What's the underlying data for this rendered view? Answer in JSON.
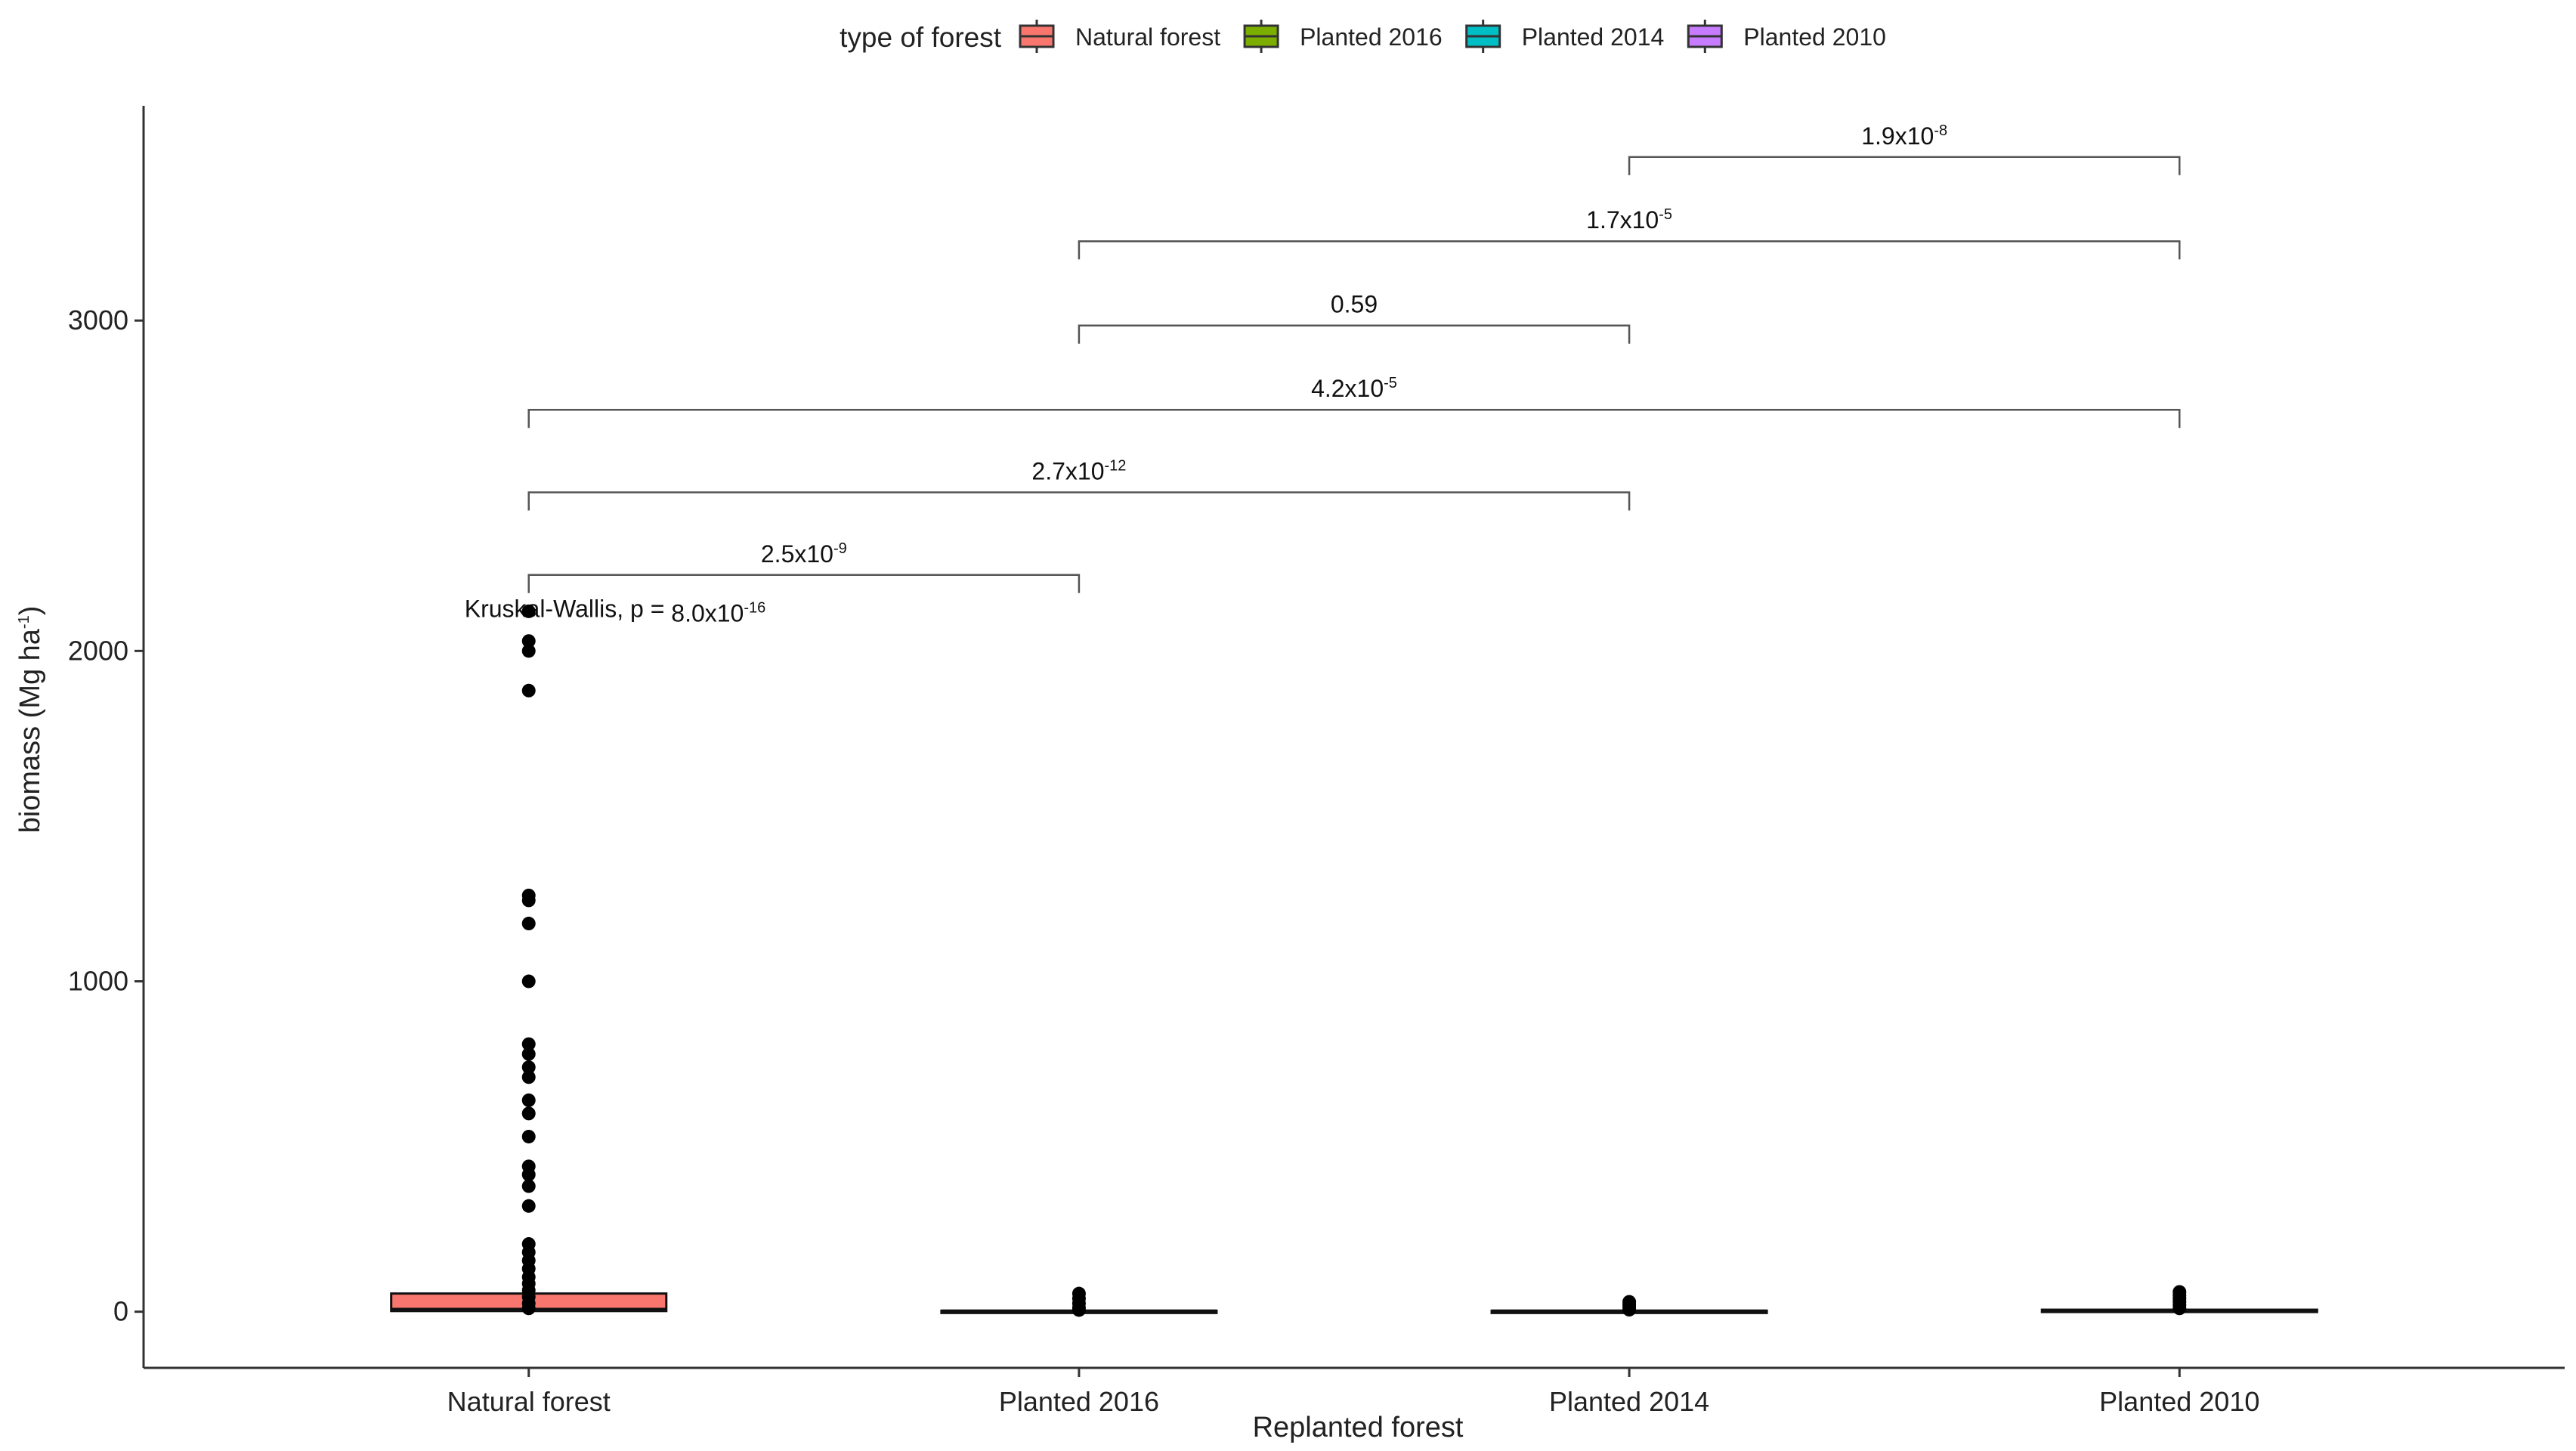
{
  "chart_data": {
    "type": "boxplot",
    "title": "",
    "xlabel": "Replanted forest",
    "ylabel_base": "biomass (Mg ha",
    "ylabel_sup": "-1",
    "ylabel_tail": ")",
    "ylim": [
      -170,
      3650
    ],
    "yticks": [
      0,
      1000,
      2000,
      3000
    ],
    "categories": [
      "Natural forest",
      "Planted 2016",
      "Planted 2014",
      "Planted 2010"
    ],
    "legend": {
      "title": "type of forest",
      "position": "top",
      "entries": [
        {
          "label": "Natural forest",
          "color": "#F8766D"
        },
        {
          "label": "Planted 2016",
          "color": "#7CAE00"
        },
        {
          "label": "Planted 2014",
          "color": "#00BFC4"
        },
        {
          "label": "Planted 2010",
          "color": "#C77CFF"
        }
      ]
    },
    "boxes": [
      {
        "category": "Natural forest",
        "q1": 2,
        "median": 6,
        "q3": 55,
        "color": "#F8766D",
        "outliers": [
          2120,
          2030,
          2000,
          1880,
          1260,
          1245,
          1175,
          1000,
          810,
          780,
          740,
          710,
          640,
          600,
          530,
          440,
          415,
          380,
          320,
          205,
          180,
          155,
          130,
          105,
          85,
          65,
          45,
          25,
          10
        ]
      },
      {
        "category": "Planted 2016",
        "q1": 0,
        "median": 1,
        "q3": 3,
        "color": "#7CAE00",
        "outliers": [
          55,
          40,
          25,
          12,
          5
        ]
      },
      {
        "category": "Planted 2014",
        "q1": 0,
        "median": 1,
        "q3": 3,
        "color": "#00BFC4",
        "outliers": [
          30,
          22,
          14,
          6
        ]
      },
      {
        "category": "Planted 2010",
        "q1": 1,
        "median": 3,
        "q3": 6,
        "color": "#C77CFF",
        "outliers": [
          60,
          50,
          40,
          30,
          20,
          10
        ]
      }
    ],
    "kruskal": {
      "prefix": "Kruskal-Wallis, p = ",
      "base": "8.0x10",
      "exp": "-16"
    },
    "comparisons": [
      {
        "from": 0,
        "to": 1,
        "y": 2230,
        "base": "2.5x10",
        "exp": "-9"
      },
      {
        "from": 0,
        "to": 2,
        "y": 2480,
        "base": "2.7x10",
        "exp": "-12"
      },
      {
        "from": 0,
        "to": 3,
        "y": 2730,
        "base": "4.2x10",
        "exp": "-5"
      },
      {
        "from": 1,
        "to": 2,
        "y": 2985,
        "base": "0.59",
        "exp": ""
      },
      {
        "from": 1,
        "to": 3,
        "y": 3240,
        "base": "1.7x10",
        "exp": "-5"
      },
      {
        "from": 2,
        "to": 3,
        "y": 3495,
        "base": "1.9x10",
        "exp": "-8"
      }
    ]
  }
}
